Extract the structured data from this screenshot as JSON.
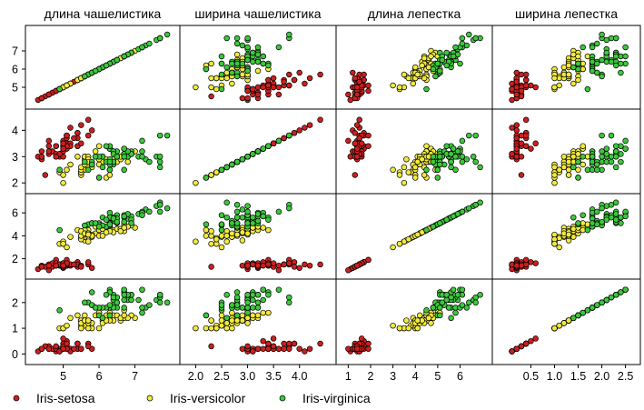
{
  "chart_data": {
    "type": "scatter",
    "variables": [
      {
        "name": "длина чашелистика",
        "ticks": [
          5,
          6,
          7
        ]
      },
      {
        "name": "ширина чашелистика",
        "ticks": [
          2.0,
          2.5,
          3.0,
          3.5,
          4.0
        ]
      },
      {
        "name": "длина лепестка",
        "ticks": [
          1,
          2,
          3,
          4,
          5,
          6
        ]
      },
      {
        "name": "ширина лепестка",
        "ticks": [
          0.5,
          1.0,
          1.5,
          2.0,
          2.5
        ]
      }
    ],
    "row_ticks": [
      [
        5,
        6,
        7
      ],
      [
        2,
        3,
        4
      ],
      [
        2,
        4,
        6
      ],
      [
        0,
        1,
        2
      ]
    ],
    "ranges": [
      [
        4.1,
        8.1
      ],
      [
        1.8,
        4.6
      ],
      [
        0.7,
        7.2
      ],
      [
        -0.2,
        2.7
      ]
    ],
    "x_tick_labels": [
      [
        "5",
        "6",
        "7"
      ],
      [
        "2.0",
        "2.5",
        "3.0",
        "3.5",
        "4.0"
      ],
      [
        "1",
        "2",
        "3",
        "4",
        "5",
        "6"
      ],
      [
        "0.5",
        "1.0",
        "1.5",
        "2.0",
        "2.5"
      ]
    ],
    "y_tick_labels": [
      [
        "5",
        "6",
        "7"
      ],
      [
        "2",
        "3",
        "4"
      ],
      [
        "2",
        "4",
        "6"
      ],
      [
        "0",
        "1",
        "2"
      ]
    ],
    "species": [
      {
        "name": "Iris-setosa",
        "color": "#cc1f1f"
      },
      {
        "name": "Iris-versicolor",
        "color": "#f2ea3a"
      },
      {
        "name": "Iris-virginica",
        "color": "#3cc83c"
      }
    ],
    "points": [
      [
        5.1,
        3.5,
        1.4,
        0.2,
        0
      ],
      [
        4.9,
        3.0,
        1.4,
        0.2,
        0
      ],
      [
        4.7,
        3.2,
        1.3,
        0.2,
        0
      ],
      [
        4.6,
        3.1,
        1.5,
        0.2,
        0
      ],
      [
        5.0,
        3.6,
        1.4,
        0.2,
        0
      ],
      [
        5.4,
        3.9,
        1.7,
        0.4,
        0
      ],
      [
        4.6,
        3.4,
        1.4,
        0.3,
        0
      ],
      [
        5.0,
        3.4,
        1.5,
        0.2,
        0
      ],
      [
        4.4,
        2.9,
        1.4,
        0.2,
        0
      ],
      [
        4.9,
        3.1,
        1.5,
        0.1,
        0
      ],
      [
        5.4,
        3.7,
        1.5,
        0.2,
        0
      ],
      [
        4.8,
        3.4,
        1.6,
        0.2,
        0
      ],
      [
        4.8,
        3.0,
        1.4,
        0.1,
        0
      ],
      [
        4.3,
        3.0,
        1.1,
        0.1,
        0
      ],
      [
        5.8,
        4.0,
        1.2,
        0.2,
        0
      ],
      [
        5.7,
        4.4,
        1.5,
        0.4,
        0
      ],
      [
        5.4,
        3.9,
        1.3,
        0.4,
        0
      ],
      [
        5.1,
        3.5,
        1.4,
        0.3,
        0
      ],
      [
        5.7,
        3.8,
        1.7,
        0.3,
        0
      ],
      [
        5.1,
        3.8,
        1.5,
        0.3,
        0
      ],
      [
        5.4,
        3.4,
        1.7,
        0.2,
        0
      ],
      [
        5.1,
        3.7,
        1.5,
        0.4,
        0
      ],
      [
        4.6,
        3.6,
        1.0,
        0.2,
        0
      ],
      [
        5.1,
        3.3,
        1.7,
        0.5,
        0
      ],
      [
        4.8,
        3.4,
        1.9,
        0.2,
        0
      ],
      [
        5.0,
        3.0,
        1.6,
        0.2,
        0
      ],
      [
        5.0,
        3.4,
        1.6,
        0.4,
        0
      ],
      [
        5.2,
        3.5,
        1.5,
        0.2,
        0
      ],
      [
        5.2,
        3.4,
        1.4,
        0.2,
        0
      ],
      [
        4.7,
        3.2,
        1.6,
        0.2,
        0
      ],
      [
        4.8,
        3.1,
        1.6,
        0.2,
        0
      ],
      [
        5.4,
        3.4,
        1.5,
        0.4,
        0
      ],
      [
        5.2,
        4.1,
        1.5,
        0.1,
        0
      ],
      [
        5.5,
        4.2,
        1.4,
        0.2,
        0
      ],
      [
        4.9,
        3.1,
        1.5,
        0.1,
        0
      ],
      [
        5.0,
        3.2,
        1.2,
        0.2,
        0
      ],
      [
        5.5,
        3.5,
        1.3,
        0.2,
        0
      ],
      [
        4.9,
        3.1,
        1.5,
        0.1,
        0
      ],
      [
        4.4,
        3.0,
        1.3,
        0.2,
        0
      ],
      [
        5.1,
        3.4,
        1.5,
        0.2,
        0
      ],
      [
        5.0,
        3.5,
        1.3,
        0.3,
        0
      ],
      [
        4.5,
        2.3,
        1.3,
        0.3,
        0
      ],
      [
        4.4,
        3.2,
        1.3,
        0.2,
        0
      ],
      [
        5.0,
        3.5,
        1.6,
        0.6,
        0
      ],
      [
        5.1,
        3.8,
        1.9,
        0.4,
        0
      ],
      [
        4.8,
        3.0,
        1.4,
        0.3,
        0
      ],
      [
        5.1,
        3.8,
        1.6,
        0.2,
        0
      ],
      [
        4.6,
        3.2,
        1.4,
        0.2,
        0
      ],
      [
        5.3,
        3.7,
        1.5,
        0.2,
        0
      ],
      [
        5.0,
        3.3,
        1.4,
        0.2,
        0
      ],
      [
        7.0,
        3.2,
        4.7,
        1.4,
        1
      ],
      [
        6.4,
        3.2,
        4.5,
        1.5,
        1
      ],
      [
        6.9,
        3.1,
        4.9,
        1.5,
        1
      ],
      [
        5.5,
        2.3,
        4.0,
        1.3,
        1
      ],
      [
        6.5,
        2.8,
        4.6,
        1.5,
        1
      ],
      [
        5.7,
        2.8,
        4.5,
        1.3,
        1
      ],
      [
        6.3,
        3.3,
        4.7,
        1.6,
        1
      ],
      [
        4.9,
        2.4,
        3.3,
        1.0,
        1
      ],
      [
        6.6,
        2.9,
        4.6,
        1.3,
        1
      ],
      [
        5.2,
        2.7,
        3.9,
        1.4,
        1
      ],
      [
        5.0,
        2.0,
        3.5,
        1.0,
        1
      ],
      [
        5.9,
        3.0,
        4.2,
        1.5,
        1
      ],
      [
        6.0,
        2.2,
        4.0,
        1.0,
        1
      ],
      [
        6.1,
        2.9,
        4.7,
        1.4,
        1
      ],
      [
        5.6,
        2.9,
        3.6,
        1.3,
        1
      ],
      [
        6.7,
        3.1,
        4.4,
        1.4,
        1
      ],
      [
        5.6,
        3.0,
        4.5,
        1.5,
        1
      ],
      [
        5.8,
        2.7,
        4.1,
        1.0,
        1
      ],
      [
        6.2,
        2.2,
        4.5,
        1.5,
        1
      ],
      [
        5.6,
        2.5,
        3.9,
        1.1,
        1
      ],
      [
        5.9,
        3.2,
        4.8,
        1.8,
        1
      ],
      [
        6.1,
        2.8,
        4.0,
        1.3,
        1
      ],
      [
        6.3,
        2.5,
        4.9,
        1.5,
        1
      ],
      [
        6.1,
        2.8,
        4.7,
        1.2,
        1
      ],
      [
        6.4,
        2.9,
        4.3,
        1.3,
        1
      ],
      [
        6.6,
        3.0,
        4.4,
        1.4,
        1
      ],
      [
        6.8,
        2.8,
        4.8,
        1.4,
        1
      ],
      [
        6.7,
        3.0,
        5.0,
        1.7,
        1
      ],
      [
        6.0,
        2.9,
        4.5,
        1.5,
        1
      ],
      [
        5.7,
        2.6,
        3.5,
        1.0,
        1
      ],
      [
        5.5,
        2.4,
        3.8,
        1.1,
        1
      ],
      [
        5.5,
        2.4,
        3.7,
        1.0,
        1
      ],
      [
        5.8,
        2.7,
        3.9,
        1.2,
        1
      ],
      [
        6.0,
        2.7,
        5.1,
        1.6,
        1
      ],
      [
        5.4,
        3.0,
        4.5,
        1.5,
        1
      ],
      [
        6.0,
        3.4,
        4.5,
        1.6,
        1
      ],
      [
        6.7,
        3.1,
        4.7,
        1.5,
        1
      ],
      [
        6.3,
        2.3,
        4.4,
        1.3,
        1
      ],
      [
        5.6,
        3.0,
        4.1,
        1.3,
        1
      ],
      [
        5.5,
        2.5,
        4.0,
        1.3,
        1
      ],
      [
        5.5,
        2.6,
        4.4,
        1.2,
        1
      ],
      [
        6.1,
        3.0,
        4.6,
        1.4,
        1
      ],
      [
        5.8,
        2.6,
        4.0,
        1.2,
        1
      ],
      [
        5.0,
        2.3,
        3.3,
        1.0,
        1
      ],
      [
        5.6,
        2.7,
        4.2,
        1.3,
        1
      ],
      [
        5.7,
        3.0,
        4.2,
        1.2,
        1
      ],
      [
        5.7,
        2.9,
        4.2,
        1.3,
        1
      ],
      [
        6.2,
        2.9,
        4.3,
        1.3,
        1
      ],
      [
        5.1,
        2.5,
        3.0,
        1.1,
        1
      ],
      [
        5.7,
        2.8,
        4.1,
        1.3,
        1
      ],
      [
        6.3,
        3.3,
        6.0,
        2.5,
        2
      ],
      [
        5.8,
        2.7,
        5.1,
        1.9,
        2
      ],
      [
        7.1,
        3.0,
        5.9,
        2.1,
        2
      ],
      [
        6.3,
        2.9,
        5.6,
        1.8,
        2
      ],
      [
        6.5,
        3.0,
        5.8,
        2.2,
        2
      ],
      [
        7.6,
        3.0,
        6.6,
        2.1,
        2
      ],
      [
        4.9,
        2.5,
        4.5,
        1.7,
        2
      ],
      [
        7.3,
        2.9,
        6.3,
        1.8,
        2
      ],
      [
        6.7,
        2.5,
        5.8,
        1.8,
        2
      ],
      [
        7.2,
        3.6,
        6.1,
        2.5,
        2
      ],
      [
        6.5,
        3.2,
        5.1,
        2.0,
        2
      ],
      [
        6.4,
        2.7,
        5.3,
        1.9,
        2
      ],
      [
        6.8,
        3.0,
        5.5,
        2.1,
        2
      ],
      [
        5.7,
        2.5,
        5.0,
        2.0,
        2
      ],
      [
        5.8,
        2.8,
        5.1,
        2.4,
        2
      ],
      [
        6.4,
        3.2,
        5.3,
        2.3,
        2
      ],
      [
        6.5,
        3.0,
        5.5,
        1.8,
        2
      ],
      [
        7.7,
        3.8,
        6.7,
        2.2,
        2
      ],
      [
        7.7,
        2.6,
        6.9,
        2.3,
        2
      ],
      [
        6.0,
        2.2,
        5.0,
        1.5,
        2
      ],
      [
        6.9,
        3.2,
        5.7,
        2.3,
        2
      ],
      [
        5.6,
        2.8,
        4.9,
        2.0,
        2
      ],
      [
        7.7,
        2.8,
        6.7,
        2.0,
        2
      ],
      [
        6.3,
        2.7,
        4.9,
        1.8,
        2
      ],
      [
        6.7,
        3.3,
        5.7,
        2.1,
        2
      ],
      [
        7.2,
        3.2,
        6.0,
        1.8,
        2
      ],
      [
        6.2,
        2.8,
        4.8,
        1.8,
        2
      ],
      [
        6.1,
        3.0,
        4.9,
        1.8,
        2
      ],
      [
        6.4,
        2.8,
        5.6,
        2.1,
        2
      ],
      [
        7.2,
        3.0,
        5.8,
        1.6,
        2
      ],
      [
        7.4,
        2.8,
        6.1,
        1.9,
        2
      ],
      [
        7.9,
        3.8,
        6.4,
        2.0,
        2
      ],
      [
        6.4,
        2.8,
        5.6,
        2.2,
        2
      ],
      [
        6.3,
        2.8,
        5.1,
        1.5,
        2
      ],
      [
        6.1,
        2.6,
        5.6,
        1.4,
        2
      ],
      [
        7.7,
        3.0,
        6.1,
        2.3,
        2
      ],
      [
        6.3,
        3.4,
        5.6,
        2.4,
        2
      ],
      [
        6.4,
        3.1,
        5.5,
        1.8,
        2
      ],
      [
        6.0,
        3.0,
        4.8,
        1.8,
        2
      ],
      [
        6.9,
        3.1,
        5.4,
        2.1,
        2
      ],
      [
        6.7,
        3.1,
        5.6,
        2.4,
        2
      ],
      [
        6.9,
        3.1,
        5.1,
        2.3,
        2
      ],
      [
        5.8,
        2.7,
        5.1,
        1.9,
        2
      ],
      [
        6.8,
        3.2,
        5.9,
        2.3,
        2
      ],
      [
        6.7,
        3.3,
        5.7,
        2.5,
        2
      ],
      [
        6.7,
        3.0,
        5.2,
        2.3,
        2
      ],
      [
        6.3,
        2.5,
        5.0,
        1.9,
        2
      ],
      [
        6.5,
        3.0,
        5.2,
        2.0,
        2
      ],
      [
        6.2,
        3.4,
        5.4,
        2.3,
        2
      ],
      [
        5.9,
        3.0,
        5.1,
        1.8,
        2
      ]
    ]
  }
}
